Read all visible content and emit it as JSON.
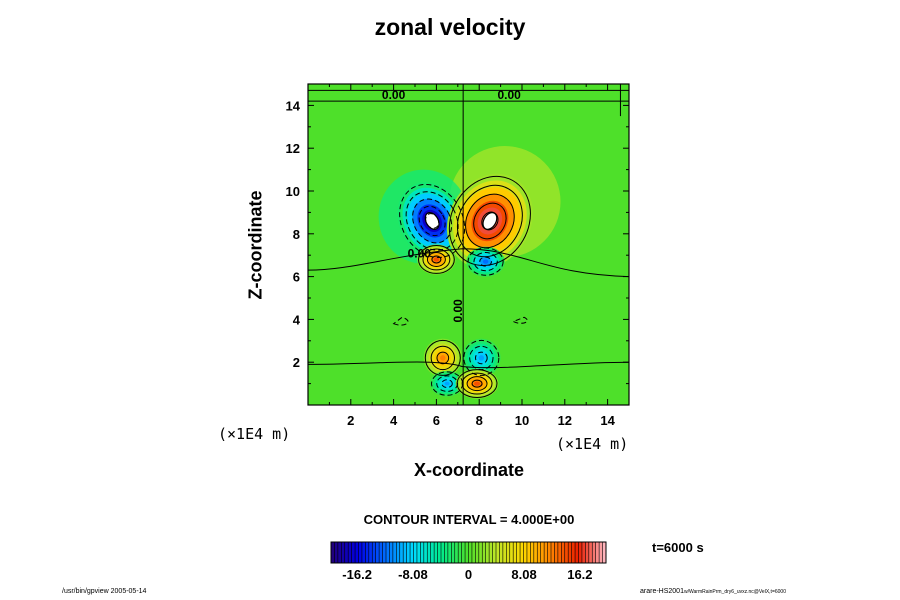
{
  "chart_data": {
    "type": "heatmap",
    "title": "zonal velocity",
    "xlabel": "X-coordinate",
    "ylabel": "Z-coordinate",
    "x_unit": "(×1E4 m)",
    "z_unit": "(×1E4 m)",
    "xlim": [
      0,
      15
    ],
    "ylim": [
      0,
      15
    ],
    "x_ticks": [
      "2",
      "4",
      "6",
      "8",
      "10",
      "12",
      "14"
    ],
    "y_ticks": [
      "2",
      "4",
      "6",
      "8",
      "10",
      "12",
      "14"
    ],
    "contour_interval": "CONTOUR INTERVAL = 4.000E+00",
    "contour_labels": [
      "0.00",
      "0.00",
      "0.00",
      "0.00"
    ],
    "colorbar": {
      "ticks": [
        "-16.2",
        "-8.08",
        "0",
        "8.08",
        "16.2"
      ],
      "range": [
        -20,
        20
      ]
    },
    "time": "t=6000 s",
    "features": [
      {
        "name": "negative-core-upper-left",
        "x": 5.8,
        "z": 8.6,
        "value": -20
      },
      {
        "name": "positive-core-upper-right",
        "x": 8.5,
        "z": 8.6,
        "value": 20
      },
      {
        "name": "positive-core-mid-left",
        "x": 6.0,
        "z": 6.8,
        "value": 14
      },
      {
        "name": "negative-core-mid-right",
        "x": 8.3,
        "z": 6.7,
        "value": -12
      },
      {
        "name": "positive-core-low-left",
        "x": 6.3,
        "z": 2.2,
        "value": 12
      },
      {
        "name": "negative-core-low-right",
        "x": 8.1,
        "z": 2.2,
        "value": -10
      },
      {
        "name": "negative-core-bottom-left",
        "x": 6.5,
        "z": 1.0,
        "value": -10
      },
      {
        "name": "positive-core-bottom-right",
        "x": 7.9,
        "z": 1.0,
        "value": 14
      }
    ]
  },
  "footer": {
    "left": "/usr/bin/gpview 2005-05-14",
    "right_main": "arare-HS2001",
    "right_small": "w/WarmRainPrm_dry6_uvxz.nc@VelX,t=6000"
  }
}
